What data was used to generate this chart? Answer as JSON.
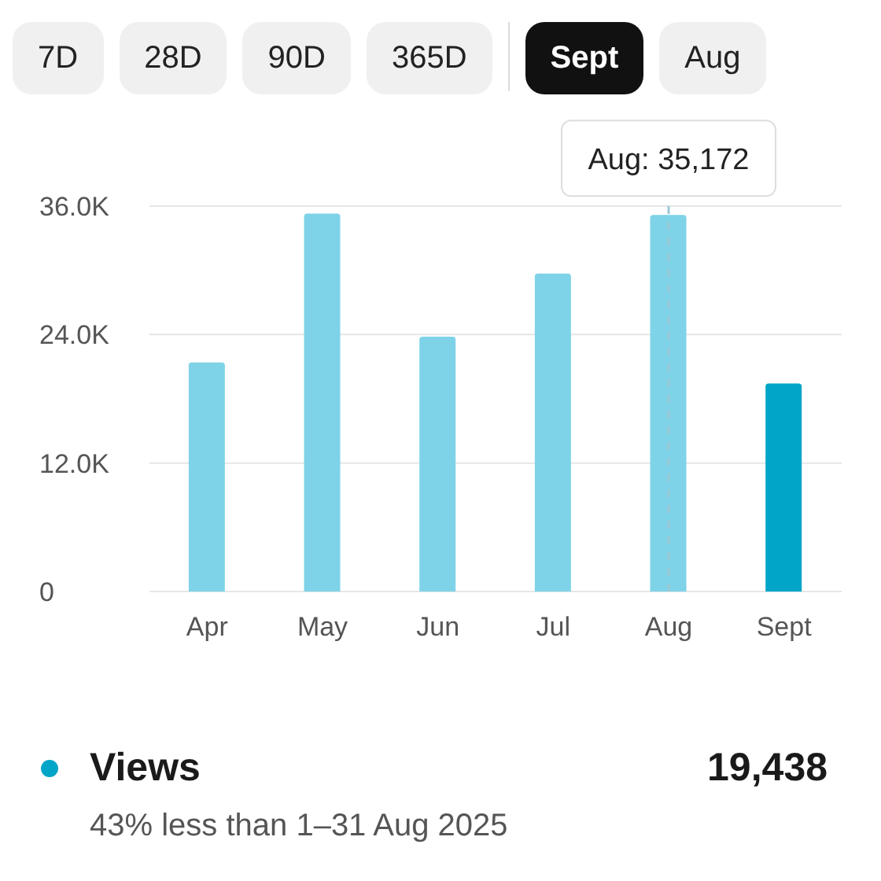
{
  "chart_data": {
    "type": "bar",
    "categories": [
      "Apr",
      "May",
      "Jun",
      "Jul",
      "Aug",
      "Sept"
    ],
    "series": [
      {
        "name": "Views",
        "color": "#00a5c8",
        "colors": [
          "#7fd3e8",
          "#7fd3e8",
          "#7fd3e8",
          "#7fd3e8",
          "#7fd3e8",
          "#00a5c8"
        ],
        "values": [
          21400,
          35300,
          23800,
          29700,
          35172,
          19438
        ]
      }
    ],
    "ylim": [
      0,
      36000
    ],
    "yticks": [
      0,
      {
        "value": 12000,
        "label": "12.0K"
      },
      {
        "value": 24000,
        "label": "24.0K"
      },
      {
        "value": 36000,
        "label": "36.0K"
      }
    ],
    "grid": "y",
    "legend": "bottom",
    "ref_lines": [
      {
        "axis": "x",
        "value": "Aug",
        "line_style": "dashed",
        "color": "#9bc9d6"
      }
    ],
    "annotations": [
      "7D",
      "28D",
      "90D",
      "365D",
      "Sept",
      "Aug",
      "19,438",
      "43% less than 1–31 Aug 2025",
      {
        "text": "Aug: 35,172",
        "x": "Aug",
        "y": 35172
      }
    ]
  }
}
